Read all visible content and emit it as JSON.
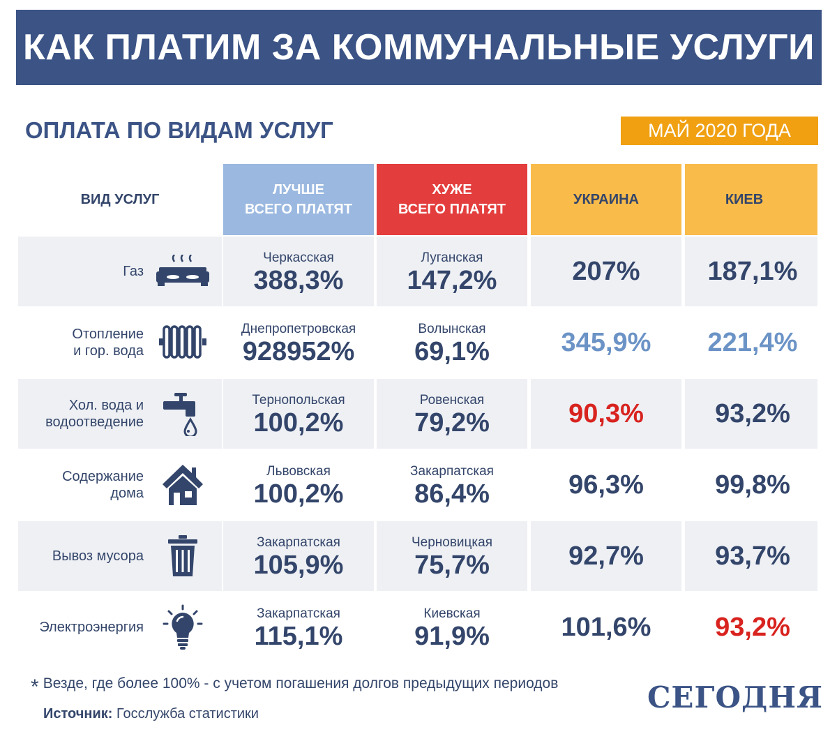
{
  "title": "КАК ПЛАТИМ ЗА КОММУНАЛЬНЫЕ УСЛУГИ",
  "subtitle": "ОПЛАТА ПО ВИДАМ УСЛУГ",
  "date_badge": "МАЙ 2020 ГОДА",
  "headers": {
    "service": "ВИД УСЛУГ",
    "best_line1": "ЛУЧШЕ",
    "best_line2": "ВСЕГО ПЛАТЯТ",
    "worst_line1": "ХУЖЕ",
    "worst_line2": "ВСЕГО ПЛАТЯТ",
    "ukraine": "УКРАИНА",
    "kyiv": "КИЕВ"
  },
  "rows": [
    {
      "service_line1": "Газ",
      "service_line2": "",
      "icon": "gas-stove-icon",
      "best_region": "Черкасская",
      "best_value": "388,3%",
      "worst_region": "Луганская",
      "worst_value": "147,2%",
      "ukraine": "207%",
      "ukraine_color": "#33456a",
      "kyiv": "187,1%",
      "kyiv_color": "#33456a"
    },
    {
      "service_line1": "Отопление",
      "service_line2": "и  гор. вода",
      "icon": "radiator-icon",
      "best_region": "Днепропетровская",
      "best_value": "928952%",
      "worst_region": "Волынская",
      "worst_value": "69,1%",
      "ukraine": "345,9%",
      "ukraine_color": "#6b93c6",
      "kyiv": "221,4%",
      "kyiv_color": "#6b93c6"
    },
    {
      "service_line1": "Хол. вода и",
      "service_line2": "водоотведение",
      "icon": "water-tap-icon",
      "best_region": "Тернопольская",
      "best_value": "100,2%",
      "worst_region": "Ровенская",
      "worst_value": "79,2%",
      "ukraine": "90,3%",
      "ukraine_color": "#d8231f",
      "kyiv": "93,2%",
      "kyiv_color": "#33456a"
    },
    {
      "service_line1": "Содержание",
      "service_line2": "дома",
      "icon": "house-icon",
      "best_region": "Львовская",
      "best_value": "100,2%",
      "worst_region": "Закарпатская",
      "worst_value": "86,4%",
      "ukraine": "96,3%",
      "ukraine_color": "#33456a",
      "kyiv": "99,8%",
      "kyiv_color": "#33456a"
    },
    {
      "service_line1": "Вывоз мусора",
      "service_line2": "",
      "icon": "trash-bin-icon",
      "best_region": "Закарпатская",
      "best_value": "105,9%",
      "worst_region": "Черновицкая",
      "worst_value": "75,7%",
      "ukraine": "92,7%",
      "ukraine_color": "#33456a",
      "kyiv": "93,7%",
      "kyiv_color": "#33456a"
    },
    {
      "service_line1": "Электроэнергия",
      "service_line2": "",
      "icon": "light-bulb-icon",
      "best_region": "Закарпатская",
      "best_value": "115,1%",
      "worst_region": "Киевская",
      "worst_value": "91,9%",
      "ukraine": "101,6%",
      "ukraine_color": "#33456a",
      "kyiv": "93,2%",
      "kyiv_color": "#d8231f"
    }
  ],
  "footnote": "Везде, где более 100% - с учетом погашения долгов  предыдущих периодов",
  "footnote_mark": "*",
  "source_label": "Источник:",
  "source_text": "Госслужба статистики",
  "logo": "СЕГОДНЯ",
  "colors": {
    "banner": "#3b5385",
    "best_header": "#9ab8e0",
    "worst_header": "#e33e3d",
    "region_header": "#f9bb4a",
    "badge": "#f0a011",
    "row_alt": "#eef0f4",
    "text": "#33456a",
    "highlight_blue": "#6b93c6",
    "highlight_red": "#d8231f"
  }
}
